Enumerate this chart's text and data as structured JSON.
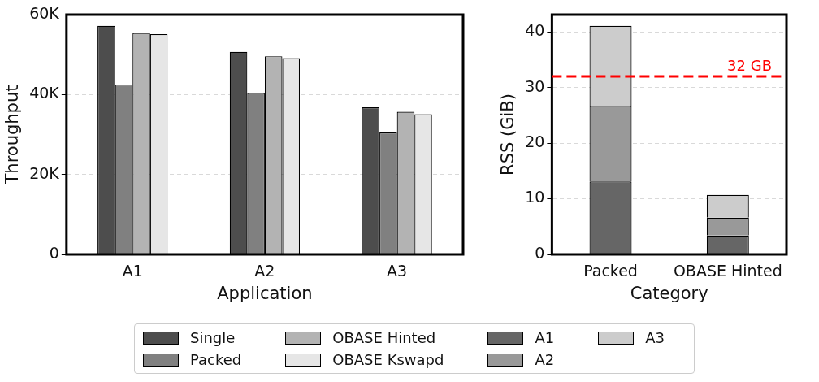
{
  "chart_data": [
    {
      "type": "bar",
      "xlabel": "Application",
      "ylabel": "Throughput",
      "categories": [
        "A1",
        "A2",
        "A3"
      ],
      "series": [
        {
          "name": "Single",
          "color": "#4d4d4d",
          "values": [
            57200,
            50700,
            36800
          ]
        },
        {
          "name": "Packed",
          "color": "#808080",
          "values": [
            42500,
            40400,
            30500
          ]
        },
        {
          "name": "OBASE Hinted",
          "color": "#b3b3b3",
          "values": [
            55400,
            49600,
            35700
          ]
        },
        {
          "name": "OBASE Kswapd",
          "color": "#e6e6e6",
          "values": [
            55100,
            49100,
            35100
          ]
        }
      ],
      "ylim": [
        0,
        60000
      ],
      "yticks": [
        0,
        {
          "value": 20000,
          "label": "20K"
        },
        {
          "value": 40000,
          "label": "40K"
        },
        {
          "value": 60000,
          "label": "60K"
        }
      ],
      "grid": "y",
      "legend": "bottom"
    },
    {
      "type": "bar",
      "xlabel": "Category",
      "ylabel": "RSS (GiB)",
      "categories": [
        "Packed",
        "OBASE Hinted"
      ],
      "stacked": true,
      "series": [
        {
          "name": "A1",
          "color": "#666666",
          "values": [
            13.1,
            3.4
          ]
        },
        {
          "name": "A2",
          "color": "#999999",
          "values": [
            13.6,
            3.2
          ]
        },
        {
          "name": "A3",
          "color": "#cccccc",
          "values": [
            14.4,
            4.1
          ]
        }
      ],
      "ylim": [
        0,
        43.1
      ],
      "yticks": [
        0,
        10,
        20,
        30,
        40
      ],
      "grid": "y",
      "legend": "bottom",
      "ref_lines": [
        {
          "axis": "y",
          "value": 32,
          "label": "32 GB",
          "color": "#ff0000",
          "line_style": "dashed"
        }
      ]
    }
  ]
}
